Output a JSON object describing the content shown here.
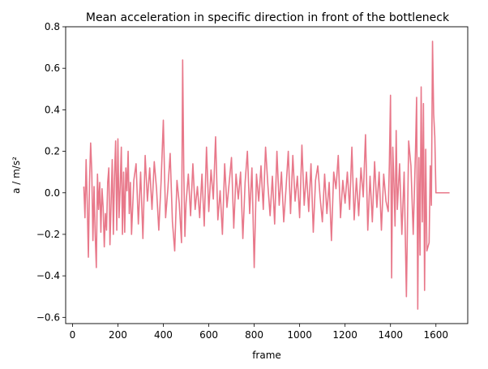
{
  "chart_data": {
    "type": "line",
    "title": "Mean acceleration in specific direction in front of the bottleneck",
    "xlabel": "frame",
    "ylabel": "a / m/s²",
    "xlim": [
      -30,
      1740
    ],
    "ylim": [
      -0.63,
      0.8
    ],
    "xticks": [
      0,
      200,
      400,
      600,
      800,
      1000,
      1200,
      1400,
      1600
    ],
    "yticks": [
      -0.6,
      -0.4,
      -0.2,
      0.0,
      0.2,
      0.4,
      0.6,
      0.8
    ],
    "xtick_labels": [
      "0",
      "200",
      "400",
      "600",
      "800",
      "1000",
      "1200",
      "1400",
      "1600"
    ],
    "ytick_labels": [
      "−0.6",
      "−0.4",
      "−0.2",
      "0.0",
      "0.2",
      "0.4",
      "0.6",
      "0.8"
    ],
    "grid": false,
    "line_color": "#e8788a",
    "series": [
      {
        "name": "",
        "x": [
          50,
          55,
          60,
          65,
          70,
          75,
          80,
          85,
          90,
          95,
          100,
          105,
          110,
          115,
          120,
          125,
          130,
          135,
          140,
          145,
          150,
          155,
          160,
          165,
          170,
          175,
          180,
          185,
          190,
          195,
          200,
          205,
          210,
          215,
          220,
          225,
          230,
          235,
          240,
          245,
          250,
          255,
          260,
          270,
          280,
          290,
          300,
          310,
          320,
          330,
          340,
          350,
          360,
          370,
          380,
          390,
          400,
          405,
          410,
          420,
          430,
          440,
          450,
          460,
          470,
          480,
          485,
          490,
          495,
          500,
          510,
          520,
          530,
          540,
          550,
          560,
          570,
          580,
          590,
          600,
          610,
          620,
          630,
          640,
          650,
          660,
          670,
          680,
          690,
          700,
          710,
          720,
          730,
          740,
          750,
          760,
          770,
          780,
          790,
          800,
          810,
          820,
          830,
          840,
          850,
          860,
          870,
          880,
          890,
          900,
          910,
          920,
          930,
          940,
          950,
          960,
          970,
          980,
          990,
          1000,
          1010,
          1020,
          1030,
          1040,
          1050,
          1060,
          1070,
          1080,
          1090,
          1100,
          1110,
          1120,
          1130,
          1140,
          1150,
          1160,
          1170,
          1180,
          1190,
          1200,
          1210,
          1220,
          1230,
          1240,
          1250,
          1260,
          1270,
          1280,
          1290,
          1300,
          1310,
          1320,
          1330,
          1340,
          1350,
          1360,
          1370,
          1380,
          1390,
          1395,
          1400,
          1405,
          1410,
          1415,
          1420,
          1425,
          1430,
          1440,
          1450,
          1460,
          1470,
          1480,
          1490,
          1500,
          1510,
          1515,
          1520,
          1525,
          1530,
          1535,
          1540,
          1545,
          1550,
          1555,
          1560,
          1570,
          1575,
          1580,
          1585,
          1590,
          1595,
          1600,
          1605,
          1610,
          1620,
          1640,
          1660
        ],
        "values": [
          0.03,
          -0.12,
          0.16,
          -0.05,
          -0.31,
          0.05,
          0.24,
          0.1,
          -0.23,
          0.03,
          -0.2,
          -0.36,
          0.09,
          -0.08,
          0.05,
          -0.19,
          0.02,
          -0.07,
          -0.26,
          -0.1,
          -0.18,
          0.05,
          0.12,
          -0.25,
          -0.05,
          0.16,
          -0.2,
          0.08,
          0.25,
          -0.18,
          0.26,
          -0.12,
          0.03,
          0.22,
          -0.2,
          0.1,
          -0.19,
          0.12,
          0.01,
          0.2,
          -0.1,
          0.05,
          -0.2,
          0.06,
          0.14,
          -0.15,
          0.1,
          -0.22,
          0.18,
          -0.04,
          0.12,
          -0.08,
          0.15,
          0.02,
          -0.18,
          0.05,
          0.35,
          0.1,
          -0.12,
          0.02,
          0.19,
          -0.14,
          -0.28,
          0.06,
          -0.05,
          -0.24,
          0.64,
          0.1,
          -0.21,
          -0.05,
          0.09,
          -0.11,
          0.14,
          -0.08,
          0.03,
          -0.12,
          0.09,
          -0.16,
          0.22,
          -0.09,
          0.11,
          -0.03,
          0.27,
          -0.13,
          0.01,
          -0.2,
          0.14,
          -0.07,
          0.05,
          0.17,
          -0.17,
          0.09,
          -0.03,
          0.1,
          -0.22,
          0.05,
          0.2,
          -0.1,
          0.12,
          -0.36,
          0.09,
          -0.04,
          0.13,
          -0.08,
          0.22,
          0.04,
          -0.11,
          0.08,
          -0.15,
          0.2,
          -0.06,
          0.1,
          -0.14,
          0.02,
          0.2,
          -0.1,
          0.18,
          -0.04,
          0.08,
          -0.12,
          0.23,
          -0.06,
          0.1,
          -0.09,
          0.14,
          -0.19,
          0.06,
          0.13,
          -0.02,
          -0.14,
          0.09,
          -0.1,
          0.05,
          -0.23,
          0.1,
          0.02,
          0.18,
          -0.12,
          0.06,
          -0.05,
          0.1,
          -0.08,
          0.22,
          -0.13,
          0.07,
          -0.11,
          0.12,
          -0.02,
          0.28,
          -0.18,
          0.08,
          -0.14,
          0.15,
          -0.07,
          0.1,
          -0.18,
          0.09,
          -0.04,
          -0.09,
          0.14,
          0.47,
          -0.41,
          0.22,
          0.05,
          -0.16,
          0.3,
          -0.08,
          0.14,
          -0.2,
          0.1,
          -0.5,
          0.25,
          0.13,
          -0.2,
          0.2,
          0.46,
          -0.56,
          0.17,
          -0.3,
          0.51,
          -0.14,
          0.43,
          -0.47,
          0.21,
          -0.28,
          -0.24,
          0.13,
          -0.06,
          0.73,
          0.38,
          0.27,
          0.0,
          0.0,
          0.0,
          0.0,
          0.0,
          0.0
        ]
      }
    ]
  }
}
